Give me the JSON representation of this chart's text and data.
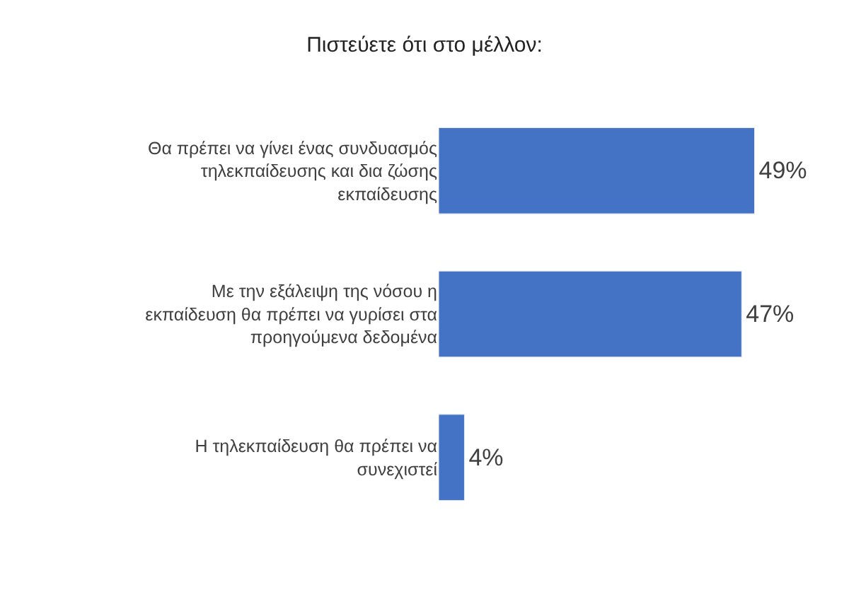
{
  "chart_data": {
    "type": "bar",
    "orientation": "horizontal",
    "title": "Πιστεύετε ότι στο μέλλον:",
    "categories": [
      "Θα πρέπει να γίνει ένας συνδυασμός τηλεκπαίδευσης και δια ζώσης εκπαίδευσης",
      "Με την εξάλειψη της νόσου η εκπαίδευση θα πρέπει να γυρίσει στα προηγούμενα δεδομένα",
      "Η τηλεκπαίδευση θα πρέπει να συνεχιστεί"
    ],
    "values": [
      49,
      47,
      4
    ],
    "value_labels": [
      "49%",
      "47%",
      "4%"
    ],
    "color": "#4472c4",
    "tick_labels": "y"
  }
}
